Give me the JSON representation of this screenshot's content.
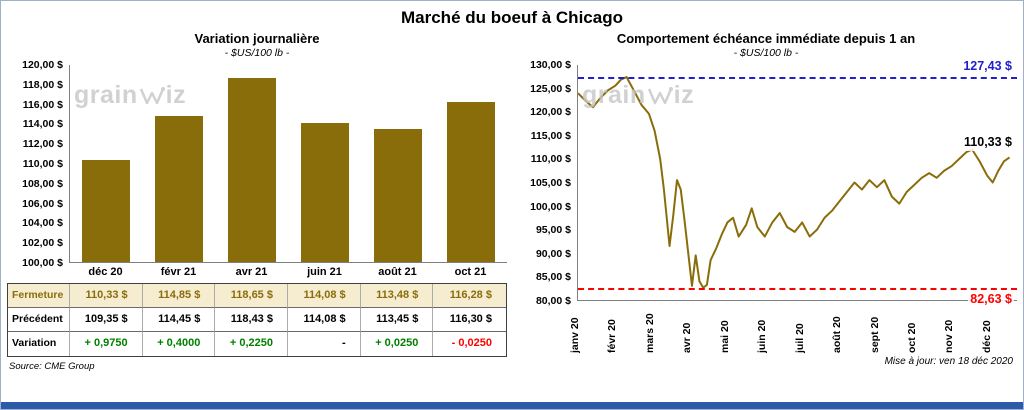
{
  "page": {
    "title": "Marché du boeuf à Chicago",
    "source": "Source: CME Group",
    "updated": "Mise à jour: ven 18 déc 2020",
    "watermark_left": "grain",
    "watermark_right": "iz"
  },
  "colors": {
    "series": "#8A6D0B",
    "resistance_line": "#1F1FCC",
    "support_line": "#FF0000",
    "positive": "#008000",
    "negative": "#FF0000",
    "fermeture_bg": "#F6ECCF",
    "fermeture_text": "#8A6D0B",
    "accent_bar": "#2A5CAA"
  },
  "chart_data": [
    {
      "type": "bar",
      "title": "Variation journalière",
      "subtitle": "- $US/100 lb -",
      "categories": [
        "déc 20",
        "févr 21",
        "avr 21",
        "juin 21",
        "août 21",
        "oct 21"
      ],
      "values": [
        110.33,
        114.85,
        118.65,
        114.08,
        113.48,
        116.28
      ],
      "ylim": [
        100,
        120
      ],
      "ytick_labels": [
        "120,00 $",
        "118,00 $",
        "116,00 $",
        "114,00 $",
        "112,00 $",
        "110,00 $",
        "108,00 $",
        "106,00 $",
        "104,00 $",
        "102,00 $",
        "100,00 $"
      ],
      "grid": false,
      "legend": false
    },
    {
      "type": "line",
      "title": "Comportement échéance immédiate depuis 1 an",
      "subtitle": "- $US/100 lb -",
      "x_labels": [
        "janv 20",
        "févr 20",
        "mars 20",
        "avr 20",
        "mai 20",
        "juin 20",
        "juil 20",
        "août 20",
        "sept 20",
        "oct 20",
        "nov 20",
        "déc 20"
      ],
      "xlim": [
        0,
        11.75
      ],
      "ylim": [
        80,
        130
      ],
      "ytick_labels": [
        "130,00 $",
        "125,00 $",
        "120,00 $",
        "115,00 $",
        "110,00 $",
        "105,00 $",
        "100,00 $",
        "95,00 $",
        "90,00 $",
        "85,00 $",
        "80,00 $"
      ],
      "grid": false,
      "legend": false,
      "hlines": [
        {
          "value": 127.43,
          "label": "127,43 $",
          "color": "#1F1FCC",
          "label_position": "above"
        },
        {
          "value": 82.63,
          "label": "82,63 $",
          "color": "#FF0000",
          "label_position": "below"
        }
      ],
      "last_point_label": "110,33 $",
      "points": [
        [
          0,
          124
        ],
        [
          0.2,
          122.4
        ],
        [
          0.4,
          121
        ],
        [
          0.6,
          123
        ],
        [
          0.8,
          124.6
        ],
        [
          1,
          125.6
        ],
        [
          1.15,
          126.9
        ],
        [
          1.3,
          127.43
        ],
        [
          1.5,
          124.5
        ],
        [
          1.7,
          121.5
        ],
        [
          1.9,
          119.6
        ],
        [
          2.05,
          116
        ],
        [
          2.2,
          110
        ],
        [
          2.3,
          103.5
        ],
        [
          2.45,
          91.5
        ],
        [
          2.55,
          98
        ],
        [
          2.65,
          105.5
        ],
        [
          2.75,
          103.5
        ],
        [
          2.85,
          97
        ],
        [
          2.95,
          90
        ],
        [
          3.05,
          83
        ],
        [
          3.15,
          89.5
        ],
        [
          3.25,
          84
        ],
        [
          3.35,
          82.63
        ],
        [
          3.45,
          83.2
        ],
        [
          3.55,
          88.5
        ],
        [
          3.7,
          91
        ],
        [
          3.85,
          94
        ],
        [
          4,
          96.5
        ],
        [
          4.15,
          97.5
        ],
        [
          4.3,
          93.5
        ],
        [
          4.5,
          96
        ],
        [
          4.65,
          99.5
        ],
        [
          4.8,
          95.5
        ],
        [
          5,
          93.5
        ],
        [
          5.2,
          96.5
        ],
        [
          5.4,
          98.5
        ],
        [
          5.6,
          95.5
        ],
        [
          5.8,
          94.5
        ],
        [
          6,
          96.5
        ],
        [
          6.2,
          93.5
        ],
        [
          6.4,
          95
        ],
        [
          6.6,
          97.5
        ],
        [
          6.8,
          99
        ],
        [
          7,
          101
        ],
        [
          7.2,
          103
        ],
        [
          7.4,
          105
        ],
        [
          7.6,
          103.5
        ],
        [
          7.8,
          105.5
        ],
        [
          8,
          104
        ],
        [
          8.2,
          105.5
        ],
        [
          8.4,
          102
        ],
        [
          8.6,
          100.5
        ],
        [
          8.8,
          103
        ],
        [
          9,
          104.5
        ],
        [
          9.2,
          106
        ],
        [
          9.4,
          107
        ],
        [
          9.6,
          106
        ],
        [
          9.8,
          107.5
        ],
        [
          10,
          108.5
        ],
        [
          10.2,
          110
        ],
        [
          10.4,
          111.5
        ],
        [
          10.55,
          112
        ],
        [
          10.75,
          109.5
        ],
        [
          10.95,
          106.5
        ],
        [
          11.1,
          105
        ],
        [
          11.25,
          107.5
        ],
        [
          11.4,
          109.5
        ],
        [
          11.55,
          110.33
        ]
      ]
    }
  ],
  "table": {
    "rows": [
      {
        "label": "Fermeture",
        "values": [
          "110,33 $",
          "114,85 $",
          "118,65 $",
          "114,08 $",
          "113,48 $",
          "116,28 $"
        ],
        "value_classes": [
          "",
          "",
          "",
          "",
          "",
          ""
        ]
      },
      {
        "label": "Précédent",
        "values": [
          "109,35 $",
          "114,45 $",
          "118,43 $",
          "114,08 $",
          "113,45 $",
          "116,30 $"
        ],
        "value_classes": [
          "",
          "",
          "",
          "",
          "",
          ""
        ]
      },
      {
        "label": "Variation",
        "values": [
          "+ 0,9750",
          "+ 0,4000",
          "+ 0,2250",
          "-",
          "+ 0,0250",
          "- 0,0250"
        ],
        "value_classes": [
          "pos",
          "pos",
          "pos",
          "neutral",
          "pos",
          "neg"
        ]
      }
    ]
  }
}
